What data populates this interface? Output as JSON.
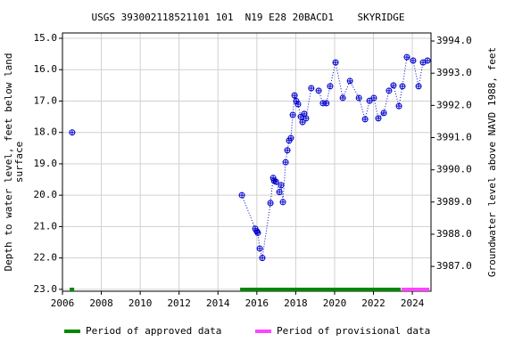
{
  "chart_data": {
    "type": "scatter",
    "title": "USGS 393002118521101 101  N19 E28 20BACD1    SKYRIDGE",
    "y_label": "Depth to water level, feet below land\nsurface",
    "y2_label": "Groundwater level above NAVD 1988, feet",
    "x": [
      2006.5,
      2015.23,
      2015.92,
      2016.0,
      2016.05,
      2016.15,
      2016.28,
      2016.7,
      2016.84,
      2016.89,
      2016.98,
      2017.16,
      2017.25,
      2017.34,
      2017.48,
      2017.57,
      2017.66,
      2017.75,
      2017.85,
      2017.94,
      2018.03,
      2018.12,
      2018.26,
      2018.35,
      2018.44,
      2018.53,
      2018.8,
      2019.18,
      2019.4,
      2019.58,
      2019.77,
      2020.05,
      2020.42,
      2020.79,
      2021.25,
      2021.57,
      2021.8,
      2022.02,
      2022.25,
      2022.53,
      2022.8,
      2023.03,
      2023.31,
      2023.49,
      2023.72,
      2024.04,
      2024.32,
      2024.55,
      2024.78
    ],
    "series": [
      {
        "color": "#0000cc",
        "values": [
          18.0,
          20.0,
          21.07,
          21.15,
          21.2,
          21.7,
          22.0,
          20.25,
          19.45,
          19.54,
          19.57,
          19.9,
          19.68,
          20.22,
          18.95,
          18.57,
          18.26,
          18.18,
          17.44,
          16.82,
          17.0,
          17.1,
          17.5,
          17.67,
          17.41,
          17.55,
          16.59,
          16.67,
          17.07,
          17.07,
          16.53,
          15.77,
          16.9,
          16.36,
          16.9,
          17.58,
          16.99,
          16.9,
          17.55,
          17.38,
          16.67,
          16.5,
          17.16,
          16.53,
          15.6,
          15.71,
          16.53,
          15.77,
          15.71
        ]
      }
    ],
    "periods": [
      {
        "name": "Period of approved data",
        "color": "#008800",
        "ranges": [
          [
            2006.37,
            2006.6
          ],
          [
            2015.14,
            2023.4
          ]
        ]
      },
      {
        "name": "Period of provisional data",
        "color": "#ff44ff",
        "ranges": [
          [
            2023.45,
            2024.87
          ]
        ]
      }
    ],
    "xlim": [
      2006,
      2024.96
    ],
    "xticks": [
      2006,
      2008,
      2010,
      2012,
      2014,
      2016,
      2018,
      2020,
      2022,
      2024
    ],
    "ylim": [
      23.06,
      14.83
    ],
    "yticks": [
      {
        "value": 15,
        "label": "15.0"
      },
      {
        "value": 16,
        "label": "16.0"
      },
      {
        "value": 17,
        "label": "17.0"
      },
      {
        "value": 18,
        "label": "18.0"
      },
      {
        "value": 19,
        "label": "19.0"
      },
      {
        "value": 20,
        "label": "20.0"
      },
      {
        "value": 21,
        "label": "21.0"
      },
      {
        "value": 22,
        "label": "22.0"
      },
      {
        "value": 23,
        "label": "23.0"
      }
    ],
    "y2lim": [
      3986.23,
      3994.25
    ],
    "y2ticks": [
      {
        "value": 3987,
        "label": "3987.0"
      },
      {
        "value": 3988,
        "label": "3988.0"
      },
      {
        "value": 3989,
        "label": "3989.0"
      },
      {
        "value": 3990,
        "label": "3990.0"
      },
      {
        "value": 3991,
        "label": "3991.0"
      },
      {
        "value": 3992,
        "label": "3992.0"
      },
      {
        "value": 3993,
        "label": "3993.0"
      },
      {
        "value": 3994,
        "label": "3994.0"
      }
    ],
    "grid": true
  }
}
